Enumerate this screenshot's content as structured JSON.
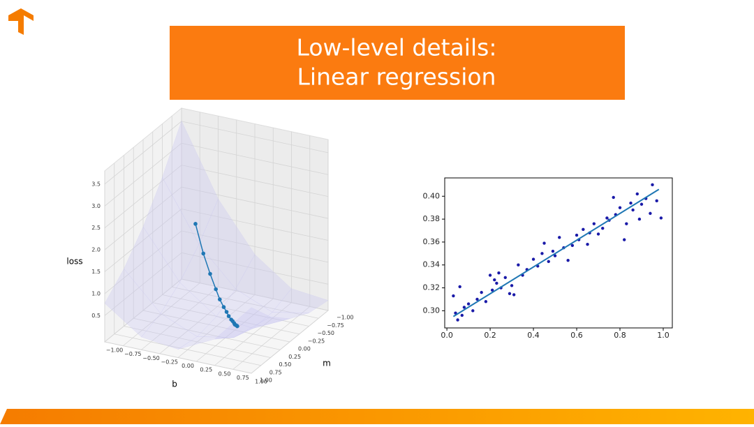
{
  "title_lines": [
    "Low-level details:",
    "Linear regression"
  ],
  "chart_data": [
    {
      "type": "surface3d",
      "xlabel": "b",
      "ylabel": "m",
      "zlabel": "loss",
      "xlim": [
        -1,
        1
      ],
      "ylim": [
        -1,
        1
      ],
      "zlim": [
        -0.1,
        3.8
      ],
      "xticks": [
        {
          "value": -1,
          "label": "−1.00"
        },
        {
          "value": -0.75,
          "label": "−0.75"
        },
        {
          "value": -0.5,
          "label": "−0.50"
        },
        {
          "value": -0.25,
          "label": "−0.25"
        },
        {
          "value": 0,
          "label": "0.00"
        },
        {
          "value": 0.25,
          "label": "0.25"
        },
        {
          "value": 0.5,
          "label": "0.50"
        },
        {
          "value": 0.75,
          "label": "0.75"
        },
        {
          "value": 1,
          "label": "1.00"
        }
      ],
      "yticks": [
        {
          "value": -1,
          "label": "−1.00"
        },
        {
          "value": -0.75,
          "label": "−0.75"
        },
        {
          "value": -0.5,
          "label": "−0.50"
        },
        {
          "value": -0.25,
          "label": "−0.25"
        },
        {
          "value": 0,
          "label": "0.00"
        },
        {
          "value": 0.25,
          "label": "0.25"
        },
        {
          "value": 0.5,
          "label": "0.50"
        },
        {
          "value": 0.75,
          "label": "0.75"
        },
        {
          "value": 1,
          "label": "1.00"
        }
      ],
      "zticks": [
        0.5,
        {
          "value": 1,
          "label": "1.0"
        },
        1.5,
        {
          "value": 2,
          "label": "2.0"
        },
        2.5,
        {
          "value": 3,
          "label": "3.0"
        },
        3.5
      ],
      "surface": {
        "x": [
          -1,
          -0.5,
          0,
          0.5,
          1
        ],
        "y": [
          -1,
          -0.5,
          0,
          0.5,
          1
        ],
        "z": [
          [
            3.51,
            2.58,
            1.81,
            1.21,
            0.78
          ],
          [
            1.91,
            1.23,
            0.72,
            0.37,
            0.19
          ],
          [
            0.82,
            0.39,
            0.12,
            0.02,
            0.09
          ],
          [
            0.22,
            0.04,
            0.03,
            0.18,
            0.5
          ],
          [
            0.13,
            0.2,
            0.43,
            0.83,
            1.4
          ]
        ],
        "color": "#c9c6f0"
      },
      "path": {
        "color": "#1f77b4",
        "x": [
          -0.6,
          -0.43,
          -0.29,
          -0.17,
          -0.08,
          0,
          0.06,
          0.11,
          0.16,
          0.19,
          0.22,
          0.24,
          0.26,
          0.28,
          0.29
        ],
        "y": [
          -0.6,
          -0.48,
          -0.39,
          -0.31,
          -0.24,
          -0.19,
          -0.15,
          -0.11,
          -0.08,
          -0.06,
          -0.04,
          -0.02,
          -0.01,
          0,
          0.01
        ],
        "z": [
          1.59,
          1.06,
          0.71,
          0.46,
          0.31,
          0.2,
          0.14,
          0.09,
          0.05,
          0.04,
          0.02,
          0.01,
          0.01,
          0.01,
          0.01
        ]
      }
    },
    {
      "type": "scatter",
      "xlim": [
        -0.01,
        1.042
      ],
      "ylim": [
        0.285,
        0.416
      ],
      "xticks": [
        {
          "value": 0,
          "label": "0.0"
        },
        0.2,
        0.4,
        0.6,
        0.8,
        {
          "value": 1,
          "label": "1.0"
        }
      ],
      "yticks": [
        {
          "value": 0.3,
          "label": "0.30"
        },
        0.32,
        0.34,
        0.36,
        0.38,
        {
          "value": 0.4,
          "label": "0.40"
        }
      ],
      "color": "#1a1aa8",
      "x": [
        0.03,
        0.04,
        0.05,
        0.06,
        0.07,
        0.08,
        0.1,
        0.12,
        0.14,
        0.16,
        0.18,
        0.2,
        0.21,
        0.22,
        0.23,
        0.24,
        0.25,
        0.27,
        0.29,
        0.3,
        0.31,
        0.33,
        0.35,
        0.37,
        0.4,
        0.42,
        0.44,
        0.45,
        0.47,
        0.49,
        0.5,
        0.52,
        0.54,
        0.56,
        0.58,
        0.6,
        0.61,
        0.63,
        0.65,
        0.66,
        0.68,
        0.7,
        0.72,
        0.74,
        0.75,
        0.77,
        0.78,
        0.8,
        0.82,
        0.83,
        0.85,
        0.86,
        0.88,
        0.89,
        0.9,
        0.92,
        0.94,
        0.95,
        0.97,
        0.99
      ],
      "values": [
        0.313,
        0.298,
        0.292,
        0.321,
        0.296,
        0.303,
        0.306,
        0.3,
        0.31,
        0.316,
        0.308,
        0.331,
        0.318,
        0.327,
        0.324,
        0.333,
        0.32,
        0.329,
        0.315,
        0.322,
        0.314,
        0.34,
        0.331,
        0.336,
        0.345,
        0.339,
        0.35,
        0.359,
        0.343,
        0.352,
        0.348,
        0.364,
        0.355,
        0.344,
        0.357,
        0.366,
        0.362,
        0.371,
        0.358,
        0.368,
        0.376,
        0.367,
        0.372,
        0.381,
        0.379,
        0.399,
        0.384,
        0.39,
        0.362,
        0.376,
        0.394,
        0.388,
        0.402,
        0.38,
        0.393,
        0.398,
        0.385,
        0.41,
        0.396,
        0.381
      ],
      "fit": {
        "color": "#1f77b4",
        "x": [
          0.03,
          0.98
        ],
        "values": [
          0.295,
          0.406
        ]
      }
    }
  ]
}
